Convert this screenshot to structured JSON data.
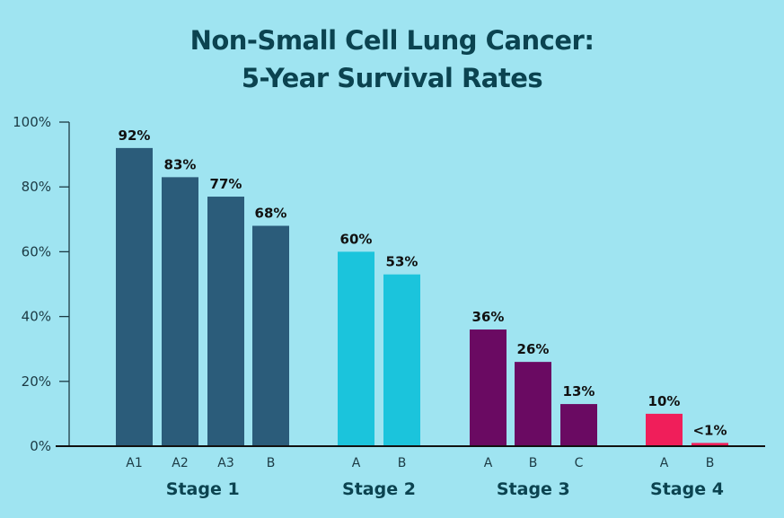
{
  "chart_data": {
    "type": "bar",
    "title_line1": "Non-Small Cell Lung Cancer:",
    "title_line2": "5-Year Survival Rates",
    "xlabel": "",
    "ylabel": "",
    "ylim": [
      0,
      100
    ],
    "yticks": [
      "0%",
      "20%",
      "40%",
      "60%",
      "80%",
      "100%"
    ],
    "ytick_values": [
      0,
      20,
      40,
      60,
      80,
      100
    ],
    "grid": false,
    "groups": [
      {
        "name": "Stage 1",
        "color": "#2b5c7a",
        "bars": [
          {
            "category": "A1",
            "value": 92,
            "label": "92%"
          },
          {
            "category": "A2",
            "value": 83,
            "label": "83%"
          },
          {
            "category": "A3",
            "value": 77,
            "label": "77%"
          },
          {
            "category": "B",
            "value": 68,
            "label": "68%"
          }
        ]
      },
      {
        "name": "Stage 2",
        "color": "#1bc4dc",
        "bars": [
          {
            "category": "A",
            "value": 60,
            "label": "60%"
          },
          {
            "category": "B",
            "value": 53,
            "label": "53%"
          }
        ]
      },
      {
        "name": "Stage 3",
        "color": "#6a0a62",
        "bars": [
          {
            "category": "A",
            "value": 36,
            "label": "36%"
          },
          {
            "category": "B",
            "value": 26,
            "label": "26%"
          },
          {
            "category": "C",
            "value": 13,
            "label": "13%"
          }
        ]
      },
      {
        "name": "Stage 4",
        "color": "#f01e5a",
        "bars": [
          {
            "category": "A",
            "value": 10,
            "label": "10%"
          },
          {
            "category": "B",
            "value": 1,
            "label": "<1%"
          }
        ]
      }
    ]
  }
}
